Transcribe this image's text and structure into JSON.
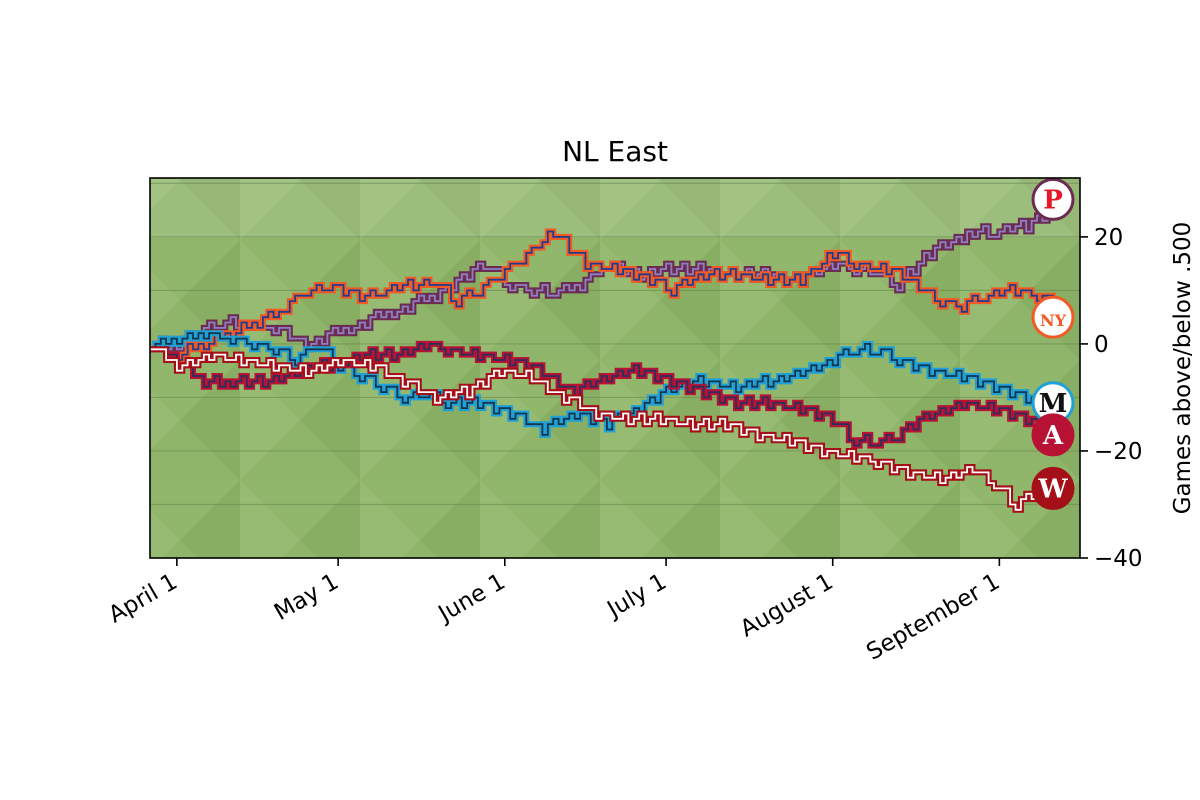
{
  "chart_data": {
    "type": "line",
    "title": "NL East",
    "xlabel": "",
    "ylabel": "Games above/below .500",
    "x_ticks": [
      "April  1",
      "May  1",
      "June  1",
      "July  1",
      "August  1",
      "September  1"
    ],
    "x_tick_days": [
      0,
      30,
      61,
      91,
      122,
      153
    ],
    "xlim": [
      -5,
      168
    ],
    "ylim": [
      -40,
      31
    ],
    "y_ticks": [
      20,
      0,
      -20,
      -40
    ],
    "y_tick_labels": [
      "20",
      "0",
      "−20",
      "−40"
    ],
    "grid": "horizontal",
    "y_axis_side": "right",
    "series": [
      {
        "team": "phillies",
        "color": "#6b2c50",
        "outline": "#8e7fc4",
        "points": [
          [
            -5,
            0
          ],
          [
            0,
            0
          ],
          [
            4,
            3
          ],
          [
            8,
            4
          ],
          [
            13,
            4
          ],
          [
            18,
            3
          ],
          [
            24,
            0
          ],
          [
            32,
            3
          ],
          [
            40,
            6
          ],
          [
            48,
            9
          ],
          [
            54,
            13
          ],
          [
            58,
            15
          ],
          [
            62,
            11
          ],
          [
            66,
            10
          ],
          [
            70,
            10
          ],
          [
            75,
            11
          ],
          [
            80,
            15
          ],
          [
            86,
            13
          ],
          [
            92,
            14
          ],
          [
            98,
            14
          ],
          [
            104,
            13
          ],
          [
            110,
            13
          ],
          [
            116,
            12
          ],
          [
            122,
            15
          ],
          [
            126,
            14
          ],
          [
            130,
            14
          ],
          [
            134,
            11
          ],
          [
            140,
            17
          ],
          [
            148,
            21
          ],
          [
            152,
            21
          ],
          [
            158,
            22
          ],
          [
            163,
            25
          ]
        ]
      },
      {
        "team": "mets",
        "color": "#f15a24",
        "outline": "#1f3d8f",
        "points": [
          [
            -5,
            0
          ],
          [
            0,
            -2
          ],
          [
            5,
            0
          ],
          [
            10,
            2
          ],
          [
            15,
            4
          ],
          [
            20,
            7
          ],
          [
            24,
            10
          ],
          [
            28,
            11
          ],
          [
            34,
            9
          ],
          [
            38,
            10
          ],
          [
            44,
            11
          ],
          [
            48,
            12
          ],
          [
            52,
            8
          ],
          [
            56,
            10
          ],
          [
            60,
            13
          ],
          [
            64,
            16
          ],
          [
            70,
            21
          ],
          [
            76,
            15
          ],
          [
            82,
            14
          ],
          [
            88,
            12
          ],
          [
            92,
            10
          ],
          [
            98,
            13
          ],
          [
            104,
            13
          ],
          [
            110,
            12
          ],
          [
            116,
            12
          ],
          [
            122,
            17
          ],
          [
            126,
            15
          ],
          [
            132,
            14
          ],
          [
            138,
            11
          ],
          [
            142,
            8
          ],
          [
            146,
            7
          ],
          [
            150,
            9
          ],
          [
            156,
            10
          ],
          [
            160,
            9
          ],
          [
            163,
            8
          ]
        ]
      },
      {
        "team": "marlins",
        "color": "#1fa1d6",
        "outline": "#15354f",
        "points": [
          [
            -5,
            0
          ],
          [
            0,
            1
          ],
          [
            5,
            2
          ],
          [
            10,
            1
          ],
          [
            14,
            0
          ],
          [
            18,
            -1
          ],
          [
            22,
            -3
          ],
          [
            26,
            0
          ],
          [
            30,
            -4
          ],
          [
            34,
            -6
          ],
          [
            38,
            -8
          ],
          [
            42,
            -10
          ],
          [
            46,
            -9
          ],
          [
            50,
            -11
          ],
          [
            56,
            -11
          ],
          [
            62,
            -13
          ],
          [
            68,
            -16
          ],
          [
            74,
            -13
          ],
          [
            80,
            -15
          ],
          [
            86,
            -12
          ],
          [
            92,
            -8
          ],
          [
            98,
            -7
          ],
          [
            104,
            -8
          ],
          [
            110,
            -7
          ],
          [
            116,
            -5
          ],
          [
            122,
            -3
          ],
          [
            126,
            -1
          ],
          [
            130,
            -1
          ],
          [
            134,
            -3
          ],
          [
            140,
            -5
          ],
          [
            146,
            -6
          ],
          [
            152,
            -8
          ],
          [
            158,
            -10
          ],
          [
            163,
            -12
          ]
        ]
      },
      {
        "team": "braves",
        "color": "#b71234",
        "outline": "#2b2f5a",
        "points": [
          [
            -5,
            0
          ],
          [
            0,
            -3
          ],
          [
            5,
            -7
          ],
          [
            10,
            -7
          ],
          [
            16,
            -7
          ],
          [
            22,
            -5
          ],
          [
            28,
            -4
          ],
          [
            34,
            -2
          ],
          [
            40,
            -2
          ],
          [
            46,
            0
          ],
          [
            50,
            -1
          ],
          [
            56,
            -2
          ],
          [
            62,
            -3
          ],
          [
            68,
            -5
          ],
          [
            74,
            -9
          ],
          [
            80,
            -6
          ],
          [
            86,
            -5
          ],
          [
            92,
            -7
          ],
          [
            98,
            -9
          ],
          [
            104,
            -11
          ],
          [
            110,
            -11
          ],
          [
            116,
            -12
          ],
          [
            122,
            -14
          ],
          [
            126,
            -18
          ],
          [
            130,
            -18
          ],
          [
            134,
            -17
          ],
          [
            140,
            -13
          ],
          [
            146,
            -11
          ],
          [
            152,
            -12
          ],
          [
            158,
            -14
          ],
          [
            163,
            -15
          ]
        ]
      },
      {
        "team": "nationals",
        "color": "#a50f18",
        "outline": "#ffffff",
        "points": [
          [
            -5,
            0
          ],
          [
            0,
            -4
          ],
          [
            6,
            -2
          ],
          [
            12,
            -3
          ],
          [
            18,
            -4
          ],
          [
            24,
            -5
          ],
          [
            30,
            -3
          ],
          [
            36,
            -4
          ],
          [
            42,
            -7
          ],
          [
            48,
            -10
          ],
          [
            54,
            -9
          ],
          [
            60,
            -5
          ],
          [
            66,
            -6
          ],
          [
            72,
            -10
          ],
          [
            78,
            -13
          ],
          [
            84,
            -14
          ],
          [
            90,
            -14
          ],
          [
            96,
            -15
          ],
          [
            102,
            -15
          ],
          [
            108,
            -17
          ],
          [
            114,
            -18
          ],
          [
            120,
            -20
          ],
          [
            126,
            -21
          ],
          [
            130,
            -22
          ],
          [
            136,
            -24
          ],
          [
            142,
            -25
          ],
          [
            148,
            -23
          ],
          [
            152,
            -26
          ],
          [
            156,
            -30
          ],
          [
            160,
            -28
          ],
          [
            163,
            -27
          ]
        ]
      }
    ]
  },
  "logos": [
    {
      "team": "phillies",
      "letter": "P",
      "y": 27,
      "ring": "#6b2c50",
      "fg": "#e81828",
      "bg": "#ffffff"
    },
    {
      "team": "mets",
      "letter": "NY",
      "y": 5,
      "ring": "#f15a24",
      "fg": "#f15a24",
      "bg": "#ffffff"
    },
    {
      "team": "marlins",
      "letter": "M",
      "y": -11,
      "ring": "#1fa1d6",
      "fg": "#111111",
      "bg": "#ffffff"
    },
    {
      "team": "braves",
      "letter": "A",
      "y": -17,
      "ring": "#b71234",
      "fg": "#ffffff",
      "bg": "#b71234"
    },
    {
      "team": "nationals",
      "letter": "W",
      "y": -27,
      "ring": "#a50f18",
      "fg": "#ffffff",
      "bg": "#a50f18"
    }
  ]
}
